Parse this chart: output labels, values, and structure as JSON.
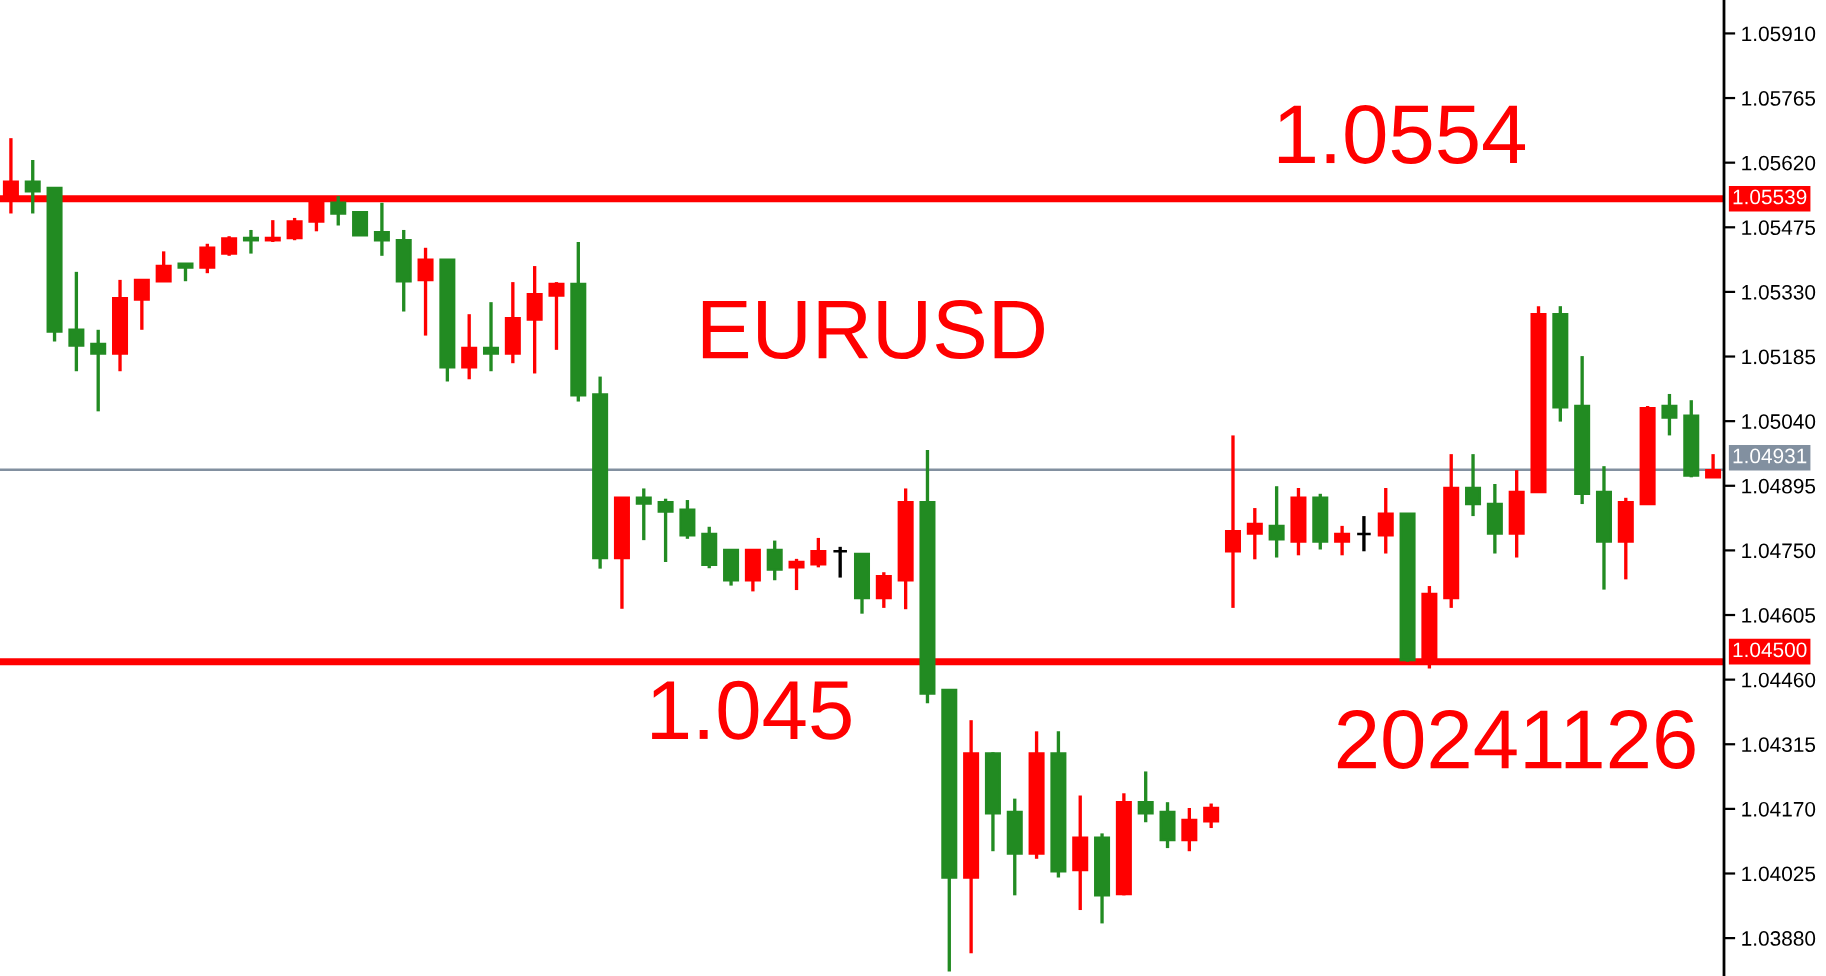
{
  "chart_data": {
    "type": "candlestick",
    "title": "EURUSD",
    "categories": [
      null,
      null,
      null,
      null,
      null,
      null,
      null,
      null,
      null,
      null,
      null,
      null,
      null,
      null,
      null,
      null,
      null,
      null,
      null,
      null,
      null,
      null,
      null,
      null,
      null,
      null,
      null,
      null,
      null,
      null,
      null,
      null,
      null,
      null,
      null,
      null,
      null,
      null,
      null,
      null,
      null,
      null,
      null,
      null,
      null,
      null,
      null,
      null,
      null,
      null,
      null,
      null,
      null,
      null,
      null,
      null,
      null,
      null,
      null,
      null,
      null,
      null,
      null,
      null,
      null,
      null,
      null,
      null,
      null,
      null,
      null,
      null,
      null,
      null,
      null,
      null,
      null,
      null,
      null
    ],
    "ohlc": [
      [
        1.05539,
        1.05675,
        1.05506,
        1.05577
      ],
      [
        1.05577,
        1.05626,
        1.05506,
        1.05556
      ],
      [
        1.05563,
        1.05563,
        1.05219,
        1.05241
      ],
      [
        1.05245,
        1.05375,
        1.05152,
        1.0521
      ],
      [
        1.05213,
        1.05245,
        1.05062,
        1.05192
      ],
      [
        1.05192,
        1.05357,
        1.05152,
        1.05316
      ],
      [
        1.05313,
        1.05357,
        1.05245,
        1.05357
      ],
      [
        1.05354,
        1.05421,
        1.05354,
        1.05388
      ],
      [
        1.05393,
        1.05393,
        1.05354,
        1.05385
      ],
      [
        1.05385,
        1.05438,
        1.05372,
        1.05429
      ],
      [
        1.05416,
        1.05455,
        1.05411,
        1.0545
      ],
      [
        1.05451,
        1.05469,
        1.05416,
        1.05446
      ],
      [
        1.05446,
        1.05491,
        1.05442,
        1.05451
      ],
      [
        1.05451,
        1.05496,
        1.05446,
        1.05488
      ],
      [
        1.05488,
        1.05539,
        1.05466,
        1.0553
      ],
      [
        1.0553,
        1.05545,
        1.05479,
        1.05506
      ],
      [
        1.05509,
        1.05509,
        1.05457,
        1.05457
      ],
      [
        1.05464,
        1.0553,
        1.05411,
        1.05446
      ],
      [
        1.05446,
        1.05469,
        1.05286,
        1.05354
      ],
      [
        1.05357,
        1.05429,
        1.05232,
        1.05402
      ],
      [
        1.05402,
        1.05402,
        1.05129,
        1.05161
      ],
      [
        1.05161,
        1.0528,
        1.05134,
        1.05204
      ],
      [
        1.05204,
        1.05307,
        1.05152,
        1.05192
      ],
      [
        1.05192,
        1.05352,
        1.0517,
        1.05271
      ],
      [
        1.05268,
        1.05388,
        1.05147,
        1.05325
      ],
      [
        1.05322,
        1.05352,
        1.052,
        1.05348
      ],
      [
        1.05348,
        1.05442,
        1.05084,
        1.05098
      ],
      [
        1.051,
        1.0514,
        1.04709,
        1.04733
      ],
      [
        1.04733,
        1.04868,
        1.04619,
        1.04868
      ],
      [
        1.04868,
        1.04889,
        1.04773,
        1.04855
      ],
      [
        1.04858,
        1.04866,
        1.04724,
        1.04837
      ],
      [
        1.04841,
        1.04863,
        1.04776,
        1.04784
      ],
      [
        1.04787,
        1.04803,
        1.0471,
        1.04718
      ],
      [
        1.04751,
        1.04751,
        1.04671,
        1.04683
      ],
      [
        1.04683,
        1.04751,
        1.04658,
        1.04751
      ],
      [
        1.04751,
        1.04772,
        1.04683,
        1.04707
      ],
      [
        1.04712,
        1.04731,
        1.04661,
        1.04724
      ],
      [
        1.04719,
        1.04778,
        1.04712,
        1.04748
      ],
      [
        1.04748,
        1.04758,
        1.04689,
        1.04748
      ],
      [
        1.04742,
        1.04742,
        1.04608,
        1.04643
      ],
      [
        1.04643,
        1.04701,
        1.04621,
        1.04692
      ],
      [
        1.04683,
        1.04889,
        1.04618,
        1.04858
      ],
      [
        1.04858,
        1.04975,
        1.04407,
        1.04429
      ],
      [
        1.04437,
        1.04437,
        1.03805,
        1.04016
      ],
      [
        1.04016,
        1.04369,
        1.03846,
        1.04294
      ],
      [
        1.04294,
        1.04297,
        1.04075,
        1.0416
      ],
      [
        1.04163,
        1.04193,
        1.03976,
        1.0407
      ],
      [
        1.0407,
        1.04344,
        1.04058,
        1.04294
      ],
      [
        1.04294,
        1.04344,
        1.04016,
        1.0403
      ],
      [
        1.04033,
        1.042,
        1.03943,
        1.04105
      ],
      [
        1.04105,
        1.04115,
        1.03913,
        1.03976
      ],
      [
        1.03979,
        1.04205,
        1.03976,
        1.04185
      ],
      [
        1.04185,
        1.04254,
        1.0414,
        1.0416
      ],
      [
        1.04163,
        1.04185,
        1.04082,
        1.041
      ],
      [
        1.041,
        1.04172,
        1.04075,
        1.04145
      ],
      [
        1.04142,
        1.04182,
        1.04127,
        1.04172
      ],
      [
        1.04748,
        1.05008,
        1.04621,
        1.04793
      ],
      [
        1.04788,
        1.04845,
        1.0473,
        1.04809
      ],
      [
        1.04805,
        1.04894,
        1.04734,
        1.04775
      ],
      [
        1.0477,
        1.0489,
        1.04739,
        1.04868
      ],
      [
        1.04868,
        1.04877,
        1.04752,
        1.0477
      ],
      [
        1.0477,
        1.04805,
        1.04739,
        1.04787
      ],
      [
        1.04787,
        1.04827,
        1.04748,
        1.04787
      ],
      [
        1.04784,
        1.0489,
        1.04743,
        1.04832
      ],
      [
        1.04832,
        1.04832,
        1.045,
        1.04504
      ],
      [
        1.04504,
        1.0467,
        1.04485,
        1.04652
      ],
      [
        1.04643,
        1.04966,
        1.04621,
        1.0489
      ],
      [
        1.0489,
        1.04966,
        1.04827,
        1.04854
      ],
      [
        1.04854,
        1.04899,
        1.04743,
        1.04788
      ],
      [
        1.04788,
        1.0493,
        1.04734,
        1.04881
      ],
      [
        1.04881,
        1.05298,
        1.04881,
        1.0528
      ],
      [
        1.0528,
        1.05298,
        1.05039,
        1.05071
      ],
      [
        1.05074,
        1.05186,
        1.04854,
        1.04877
      ],
      [
        1.04881,
        1.04939,
        1.04662,
        1.0477
      ],
      [
        1.0477,
        1.04868,
        1.04685,
        1.04858
      ],
      [
        1.04854,
        1.05074,
        1.04854,
        1.05069
      ],
      [
        1.05074,
        1.05101,
        1.05008,
        1.05048
      ],
      [
        1.05052,
        1.05087,
        1.04914,
        1.04918
      ],
      [
        1.04914,
        1.04966,
        1.04914,
        1.0493
      ]
    ],
    "colors": [
      "#ff0000",
      "#228b22",
      "#228b22",
      "#228b22",
      "#228b22",
      "#ff0000",
      "#ff0000",
      "#ff0000",
      "#228b22",
      "#ff0000",
      "#ff0000",
      "#228b22",
      "#ff0000",
      "#ff0000",
      "#ff0000",
      "#228b22",
      "#228b22",
      "#228b22",
      "#228b22",
      "#ff0000",
      "#228b22",
      "#ff0000",
      "#228b22",
      "#ff0000",
      "#ff0000",
      "#ff0000",
      "#228b22",
      "#228b22",
      "#ff0000",
      "#228b22",
      "#228b22",
      "#228b22",
      "#228b22",
      "#228b22",
      "#ff0000",
      "#228b22",
      "#ff0000",
      "#ff0000",
      "#000000",
      "#228b22",
      "#ff0000",
      "#ff0000",
      "#228b22",
      "#228b22",
      "#ff0000",
      "#228b22",
      "#228b22",
      "#ff0000",
      "#228b22",
      "#ff0000",
      "#228b22",
      "#ff0000",
      "#228b22",
      "#228b22",
      "#ff0000",
      "#ff0000",
      "#ff0000",
      "#ff0000",
      "#228b22",
      "#ff0000",
      "#228b22",
      "#ff0000",
      "#000000",
      "#ff0000",
      "#228b22",
      "#ff0000",
      "#ff0000",
      "#228b22",
      "#228b22",
      "#ff0000",
      "#ff0000",
      "#228b22",
      "#228b22",
      "#228b22",
      "#ff0000",
      "#ff0000",
      "#228b22",
      "#228b22",
      "#ff0000"
    ],
    "ylim": [
      1.03795,
      1.05985
    ],
    "yticks": [
      {
        "value": 1.0591,
        "label": "1.05910"
      },
      {
        "value": 1.05765,
        "label": "1.05765"
      },
      {
        "value": 1.0562,
        "label": "1.05620"
      },
      {
        "value": 1.05475,
        "label": "1.05475"
      },
      {
        "value": 1.0533,
        "label": "1.05330"
      },
      {
        "value": 1.05185,
        "label": "1.05185"
      },
      {
        "value": 1.0504,
        "label": "1.05040"
      },
      {
        "value": 1.04895,
        "label": "1.04895"
      },
      {
        "value": 1.0475,
        "label": "1.04750"
      },
      {
        "value": 1.04605,
        "label": "1.04605"
      },
      {
        "value": 1.0446,
        "label": "1.04460"
      },
      {
        "value": 1.04315,
        "label": "1.04315"
      },
      {
        "value": 1.0417,
        "label": "1.04170"
      },
      {
        "value": 1.04025,
        "label": "1.04025"
      },
      {
        "value": 1.0388,
        "label": "1.03880"
      }
    ],
    "ref_lines": [
      {
        "axis": "y",
        "value": 1.05539,
        "label": "1.05539",
        "color": "#ff0000"
      },
      {
        "axis": "y",
        "value": 1.04931,
        "label": "1.04931",
        "color": "#8290a0"
      },
      {
        "axis": "y",
        "value": 1.045,
        "label": "1.04500",
        "color": "#ff0000"
      }
    ],
    "annotations": [
      "1.0554",
      "1.045",
      "20241126"
    ],
    "tick_labels": "y",
    "grid": false,
    "legend": false
  }
}
